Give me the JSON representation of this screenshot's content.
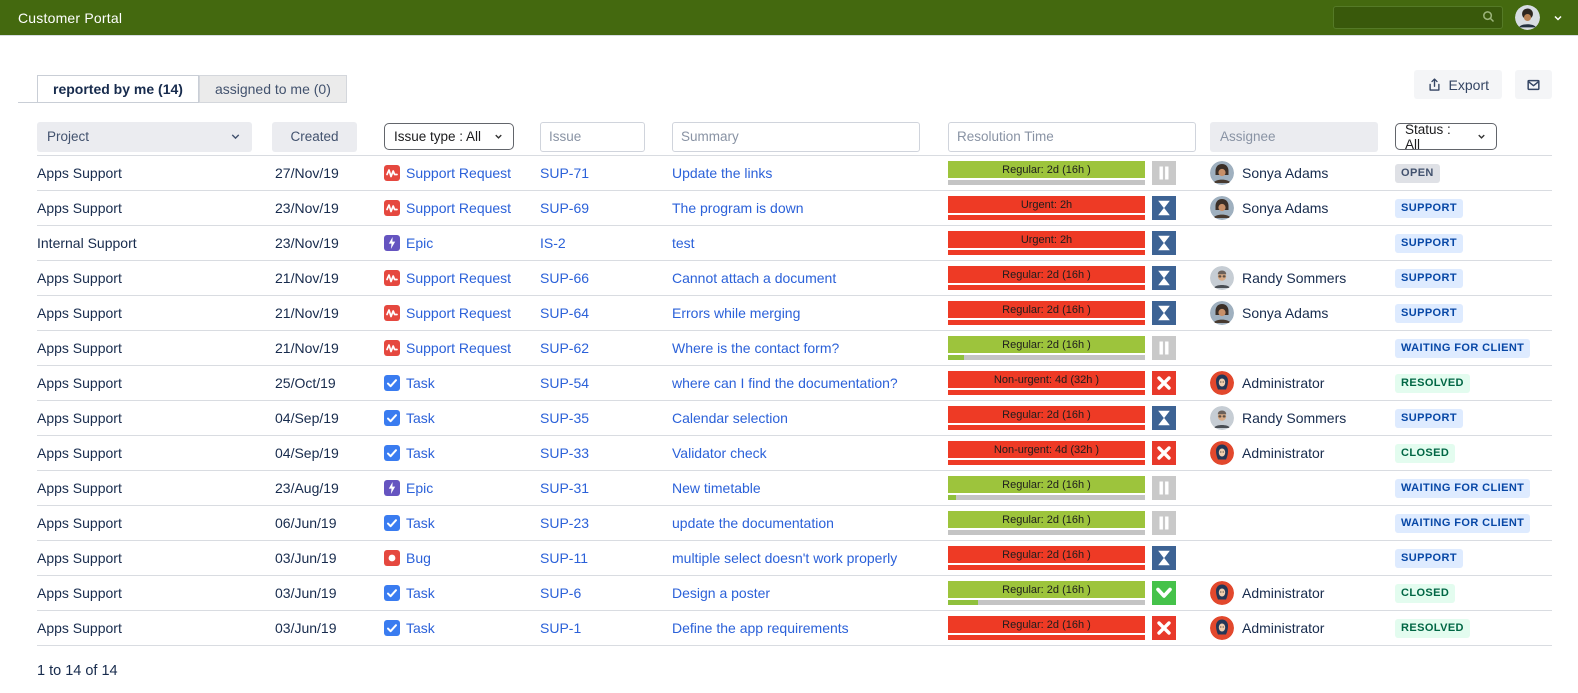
{
  "header": {
    "title": "Customer Portal"
  },
  "tabs": [
    {
      "label": "reported by me (14)",
      "active": true
    },
    {
      "label": "assigned to me (0)",
      "active": false
    }
  ],
  "toolbar": {
    "export_label": "Export"
  },
  "filters": {
    "project_label": "Project",
    "created_label": "Created",
    "issue_type_label": "Issue type : All",
    "issue_placeholder": "Issue",
    "summary_placeholder": "Summary",
    "resolution_placeholder": "Resolution Time",
    "assignee_placeholder": "Assignee",
    "status_label": "Status : All"
  },
  "palette": {
    "header_green": "#44690f",
    "link_blue": "#2b61d9",
    "bar_green": "#9dc43c",
    "bar_red": "#ee3a25",
    "track_gray": "#c4c4c4",
    "fill_green": "#8fc03c",
    "icon_pause_bg": "#c9c9c9",
    "icon_hourglass_bg": "#3d6394",
    "icon_cross_bg": "#e8392a",
    "icon_check_bg": "#45c24a",
    "type_red": "#e5483f",
    "type_purple": "#6554c0",
    "type_blue": "#3a7cf0",
    "badge_gray_bg": "#dfe1e6",
    "badge_gray_text": "#42526e",
    "badge_blue_bg": "#deebff",
    "badge_blue_text": "#0747a6",
    "badge_green_bg": "#e3fcef",
    "badge_green_text": "#006644"
  },
  "table": {
    "rows": [
      {
        "project": "Apps Support",
        "created": "27/Nov/19",
        "type": {
          "label": "Support Request",
          "icon": "support-request-icon"
        },
        "key": "SUP-71",
        "summary": "Update the links",
        "resolution": {
          "label": "Regular: 2d (16h )",
          "bar": "green",
          "sub_percent": 0,
          "sub_tone": null,
          "icon": "pause-icon"
        },
        "assignee": {
          "name": "Sonya Adams",
          "avatar": "sonya-avatar"
        },
        "status": {
          "label": "OPEN",
          "tone": "gray"
        }
      },
      {
        "project": "Apps Support",
        "created": "23/Nov/19",
        "type": {
          "label": "Support Request",
          "icon": "support-request-icon"
        },
        "key": "SUP-69",
        "summary": "The program is down",
        "resolution": {
          "label": "Urgent: 2h",
          "bar": "red",
          "sub_percent": 100,
          "sub_tone": "red",
          "icon": "hourglass-icon"
        },
        "assignee": {
          "name": "Sonya Adams",
          "avatar": "sonya-avatar"
        },
        "status": {
          "label": "SUPPORT",
          "tone": "blue"
        }
      },
      {
        "project": "Internal Support",
        "created": "23/Nov/19",
        "type": {
          "label": "Epic",
          "icon": "epic-icon"
        },
        "key": "IS-2",
        "summary": "test",
        "resolution": {
          "label": "Urgent: 2h",
          "bar": "red",
          "sub_percent": 100,
          "sub_tone": "red",
          "icon": "hourglass-icon"
        },
        "assignee": null,
        "status": {
          "label": "SUPPORT",
          "tone": "blue"
        }
      },
      {
        "project": "Apps Support",
        "created": "21/Nov/19",
        "type": {
          "label": "Support Request",
          "icon": "support-request-icon"
        },
        "key": "SUP-66",
        "summary": "Cannot attach a document",
        "resolution": {
          "label": "Regular: 2d (16h )",
          "bar": "red",
          "sub_percent": 100,
          "sub_tone": "red",
          "icon": "hourglass-icon"
        },
        "assignee": {
          "name": "Randy Sommers",
          "avatar": "randy-avatar"
        },
        "status": {
          "label": "SUPPORT",
          "tone": "blue"
        }
      },
      {
        "project": "Apps Support",
        "created": "21/Nov/19",
        "type": {
          "label": "Support Request",
          "icon": "support-request-icon"
        },
        "key": "SUP-64",
        "summary": "Errors while merging",
        "resolution": {
          "label": "Regular: 2d (16h )",
          "bar": "red",
          "sub_percent": 100,
          "sub_tone": "red",
          "icon": "hourglass-icon"
        },
        "assignee": {
          "name": "Sonya Adams",
          "avatar": "sonya-avatar"
        },
        "status": {
          "label": "SUPPORT",
          "tone": "blue"
        }
      },
      {
        "project": "Apps Support",
        "created": "21/Nov/19",
        "type": {
          "label": "Support Request",
          "icon": "support-request-icon"
        },
        "key": "SUP-62",
        "summary": "Where is the contact form?",
        "resolution": {
          "label": "Regular: 2d (16h )",
          "bar": "green",
          "sub_percent": 8,
          "sub_tone": "green",
          "icon": "pause-icon"
        },
        "assignee": null,
        "status": {
          "label": "WAITING FOR CLIENT",
          "tone": "blue"
        }
      },
      {
        "project": "Apps Support",
        "created": "25/Oct/19",
        "type": {
          "label": "Task",
          "icon": "task-icon"
        },
        "key": "SUP-54",
        "summary": "where can I find the documentation?",
        "resolution": {
          "label": "Non-urgent: 4d (32h )",
          "bar": "red",
          "sub_percent": 100,
          "sub_tone": "red",
          "icon": "cross-icon"
        },
        "assignee": {
          "name": "Administrator",
          "avatar": "admin-avatar"
        },
        "status": {
          "label": "RESOLVED",
          "tone": "green"
        }
      },
      {
        "project": "Apps Support",
        "created": "04/Sep/19",
        "type": {
          "label": "Task",
          "icon": "task-icon"
        },
        "key": "SUP-35",
        "summary": "Calendar selection",
        "resolution": {
          "label": "Regular: 2d (16h )",
          "bar": "red",
          "sub_percent": 100,
          "sub_tone": "red",
          "icon": "hourglass-icon"
        },
        "assignee": {
          "name": "Randy Sommers",
          "avatar": "randy-avatar"
        },
        "status": {
          "label": "SUPPORT",
          "tone": "blue"
        }
      },
      {
        "project": "Apps Support",
        "created": "04/Sep/19",
        "type": {
          "label": "Task",
          "icon": "task-icon"
        },
        "key": "SUP-33",
        "summary": "Validator check",
        "resolution": {
          "label": "Non-urgent: 4d (32h )",
          "bar": "red",
          "sub_percent": 100,
          "sub_tone": "red",
          "icon": "cross-icon"
        },
        "assignee": {
          "name": "Administrator",
          "avatar": "admin-avatar"
        },
        "status": {
          "label": "CLOSED",
          "tone": "green"
        }
      },
      {
        "project": "Apps Support",
        "created": "23/Aug/19",
        "type": {
          "label": "Epic",
          "icon": "epic-icon"
        },
        "key": "SUP-31",
        "summary": "New timetable",
        "resolution": {
          "label": "Regular: 2d (16h )",
          "bar": "green",
          "sub_percent": 4,
          "sub_tone": "green",
          "icon": "pause-icon"
        },
        "assignee": null,
        "status": {
          "label": "WAITING FOR CLIENT",
          "tone": "blue"
        }
      },
      {
        "project": "Apps Support",
        "created": "06/Jun/19",
        "type": {
          "label": "Task",
          "icon": "task-icon"
        },
        "key": "SUP-23",
        "summary": "update the documentation",
        "resolution": {
          "label": "Regular: 2d (16h )",
          "bar": "green",
          "sub_percent": 0,
          "sub_tone": null,
          "icon": "pause-icon"
        },
        "assignee": null,
        "status": {
          "label": "WAITING FOR CLIENT",
          "tone": "blue"
        }
      },
      {
        "project": "Apps Support",
        "created": "03/Jun/19",
        "type": {
          "label": "Bug",
          "icon": "bug-icon"
        },
        "key": "SUP-11",
        "summary": "multiple select doesn't work properly",
        "resolution": {
          "label": "Regular: 2d (16h )",
          "bar": "red",
          "sub_percent": 100,
          "sub_tone": "red",
          "icon": "hourglass-icon"
        },
        "assignee": null,
        "status": {
          "label": "SUPPORT",
          "tone": "blue"
        }
      },
      {
        "project": "Apps Support",
        "created": "03/Jun/19",
        "type": {
          "label": "Task",
          "icon": "task-icon"
        },
        "key": "SUP-6",
        "summary": "Design a poster",
        "resolution": {
          "label": "Regular: 2d (16h )",
          "bar": "green",
          "sub_percent": 15,
          "sub_tone": "green",
          "icon": "check-icon"
        },
        "assignee": {
          "name": "Administrator",
          "avatar": "admin-avatar"
        },
        "status": {
          "label": "CLOSED",
          "tone": "green"
        }
      },
      {
        "project": "Apps Support",
        "created": "03/Jun/19",
        "type": {
          "label": "Task",
          "icon": "task-icon"
        },
        "key": "SUP-1",
        "summary": "Define the app requirements",
        "resolution": {
          "label": "Regular: 2d (16h )",
          "bar": "red",
          "sub_percent": 100,
          "sub_tone": "red",
          "icon": "cross-icon"
        },
        "assignee": {
          "name": "Administrator",
          "avatar": "admin-avatar"
        },
        "status": {
          "label": "RESOLVED",
          "tone": "green"
        }
      }
    ]
  },
  "footer": {
    "range_label": "1 to 14 of 14"
  }
}
